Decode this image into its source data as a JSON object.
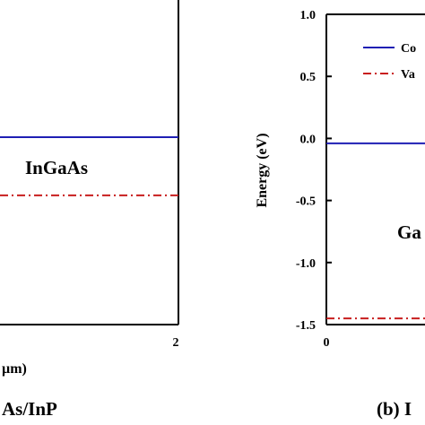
{
  "chart_data": [
    {
      "type": "line",
      "caption": "As/InP",
      "xlabel": "µm)",
      "xlim": [
        0,
        2
      ],
      "x_ticks": [
        "2"
      ],
      "region_label": "InGaAs",
      "series": [
        {
          "x": [
            0,
            2
          ],
          "values": [
            0.0,
            0.0
          ],
          "color": "#1f1fb4",
          "style": "solid"
        },
        {
          "x": [
            0,
            2
          ],
          "values": [
            -0.75,
            -0.75
          ],
          "color": "#c81e1e",
          "style": "dash-dot"
        }
      ]
    },
    {
      "type": "line",
      "caption": "(b) I",
      "ylabel": "Energy (eV)",
      "ylim": [
        -1.5,
        1.0
      ],
      "y_ticks": [
        "1.0",
        "0.5",
        "0.0",
        "-0.5",
        "-1.0",
        "-1.5"
      ],
      "x_ticks": [
        "0"
      ],
      "region_label": "Ga",
      "legend": [
        "Co",
        "Va"
      ],
      "series": [
        {
          "x": [
            0,
            1
          ],
          "values": [
            -0.04,
            -0.04
          ],
          "color": "#1f1fb4",
          "style": "solid"
        },
        {
          "x": [
            0,
            1
          ],
          "values": [
            -1.45,
            -1.45
          ],
          "color": "#c81e1e",
          "style": "dash-dot"
        }
      ]
    }
  ]
}
